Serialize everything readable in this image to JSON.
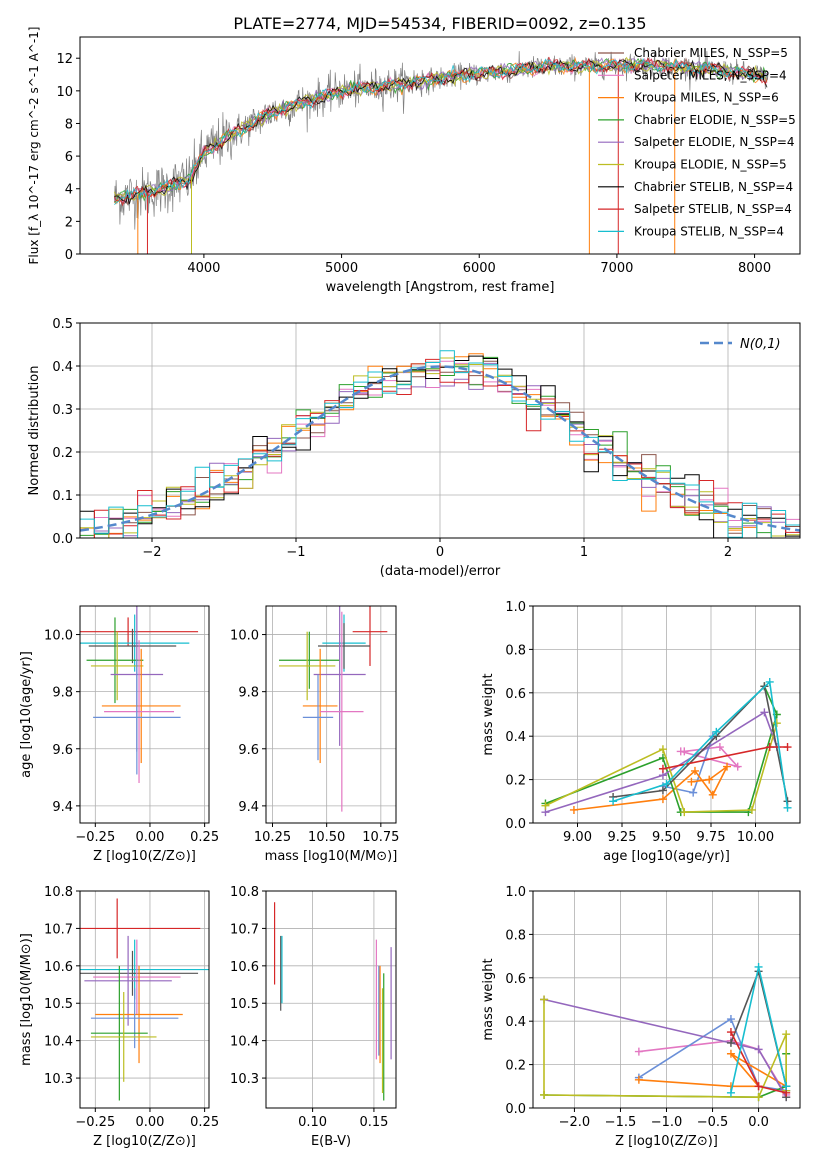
{
  "figure_title": "PLATE=2774, MJD=54534, FIBERID=0092, z=0.135",
  "colors": {
    "data": "#808080",
    "models": [
      "#8c564b",
      "#e377c2",
      "#ff7f0e",
      "#2ca02c",
      "#9467bd",
      "#bcbd22",
      "#000000",
      "#d62728",
      "#17becf"
    ],
    "palette": [
      "#e377c2",
      "#1f77b4",
      "#ff7f0e",
      "#2ca02c",
      "#9467bd",
      "#bcbd22",
      "#555555",
      "#d62728",
      "#17becf",
      "#6a8fd8"
    ],
    "normal_curve": "#5588cc",
    "grid": "#b0b0b0"
  },
  "legend_models": [
    "Chabrier MILES, N_SSP=5",
    "Salpeter MILES, N_SSP=4",
    "Kroupa MILES, N_SSP=6",
    "Chabrier ELODIE, N_SSP=5",
    "Salpeter ELODIE, N_SSP=4",
    "Kroupa ELODIE, N_SSP=5",
    "Chabrier STELIB, N_SSP=4",
    "Salpeter STELIB, N_SSP=4",
    "Kroupa STELIB, N_SSP=4"
  ],
  "chart_data": [
    {
      "id": "spectrum",
      "type": "line",
      "title": "PLATE=2774, MJD=54534, FIBERID=0092, z=0.135",
      "xlabel": "wavelength [Angstrom, rest frame]",
      "ylabel": "Flux [f_λ 10^-17 erg cm^-2 s^-1 A^-1]",
      "xlim": [
        3100,
        8330
      ],
      "ylim": [
        0,
        13.3
      ],
      "xticks": [
        4000,
        5000,
        6000,
        7000,
        8000
      ],
      "yticks": [
        0,
        2,
        4,
        6,
        8,
        10,
        12
      ],
      "grid": false,
      "legend_placement": "top-right",
      "continuum": {
        "x": [
          3350,
          3500,
          3700,
          3900,
          4000,
          4200,
          4500,
          4800,
          5000,
          5300,
          5600,
          5900,
          6200,
          6500,
          6800,
          7100,
          7400,
          7700,
          8000,
          8100
        ],
        "y": [
          3.4,
          3.6,
          4.0,
          4.6,
          6.2,
          7.3,
          8.7,
          9.5,
          10.0,
          10.3,
          10.6,
          11.0,
          11.2,
          11.5,
          11.5,
          11.6,
          11.5,
          11.3,
          11.0,
          10.8
        ]
      },
      "series": [
        {
          "name": "data"
        },
        {
          "name": "Chabrier MILES, N_SSP=5"
        },
        {
          "name": "Salpeter MILES, N_SSP=4"
        },
        {
          "name": "Kroupa MILES, N_SSP=6"
        },
        {
          "name": "Chabrier ELODIE, N_SSP=5"
        },
        {
          "name": "Salpeter ELODIE, N_SSP=4"
        },
        {
          "name": "Kroupa ELODIE, N_SSP=5"
        },
        {
          "name": "Chabrier STELIB, N_SSP=4"
        },
        {
          "name": "Salpeter STELIB, N_SSP=4"
        },
        {
          "name": "Kroupa STELIB, N_SSP=4"
        }
      ]
    },
    {
      "id": "residuals",
      "type": "area",
      "xlabel": "(data-model)/error",
      "ylabel": "Normed distribution",
      "xlim": [
        -2.5,
        2.5
      ],
      "ylim": [
        0,
        0.5
      ],
      "xticks": [
        -2,
        -1,
        0,
        1,
        2
      ],
      "yticks": [
        0.0,
        0.1,
        0.2,
        0.3,
        0.4,
        0.5
      ],
      "grid": true,
      "legend": "N(0,1)",
      "legend_placement": "top-right",
      "bin_width": 0.1,
      "bin_start": -2.5
    },
    {
      "id": "age_vs_Z",
      "type": "scatter",
      "xlabel": "Z [log10(Z/Z⊙)]",
      "ylabel": "age [log10(age/yr)]",
      "xlim": [
        -0.32,
        0.27
      ],
      "ylim": [
        9.34,
        10.1
      ],
      "xticks": [
        -0.25,
        0.0,
        0.25
      ],
      "yticks": [
        9.4,
        9.6,
        9.8,
        10.0
      ],
      "grid": true,
      "points": [
        {
          "x": -0.1,
          "y": 10.01,
          "xerr": 0.32,
          "yerr": 0.05,
          "c": 7
        },
        {
          "x": -0.07,
          "y": 9.97,
          "xerr": 0.25,
          "yerr": 0.1,
          "c": 8
        },
        {
          "x": -0.08,
          "y": 9.96,
          "xerr": 0.2,
          "yerr": 0.06,
          "c": 6
        },
        {
          "x": -0.16,
          "y": 9.91,
          "xerr": 0.13,
          "yerr": 0.15,
          "c": 3
        },
        {
          "x": -0.15,
          "y": 9.89,
          "xerr": 0.12,
          "yerr": 0.12,
          "c": 5
        },
        {
          "x": -0.06,
          "y": 9.86,
          "xerr": 0.12,
          "yerr": 0.27,
          "c": 4
        },
        {
          "x": -0.04,
          "y": 9.75,
          "xerr": 0.18,
          "yerr": 0.2,
          "c": 2
        },
        {
          "x": -0.05,
          "y": 9.73,
          "xerr": 0.16,
          "yerr": 0.25,
          "c": 0
        },
        {
          "x": -0.06,
          "y": 9.71,
          "xerr": 0.2,
          "yerr": 0.2,
          "c": 9
        }
      ]
    },
    {
      "id": "age_vs_mass",
      "type": "scatter",
      "xlabel": "mass [log10(M/M⊙)]",
      "ylabel": "",
      "xlim": [
        10.22,
        10.82
      ],
      "ylim": [
        9.34,
        10.1
      ],
      "xticks": [
        10.25,
        10.5,
        10.75
      ],
      "yticks": [
        9.4,
        9.6,
        9.8,
        10.0
      ],
      "grid": true,
      "points": [
        {
          "x": 10.7,
          "y": 10.01,
          "xerr": 0.08,
          "yerr": 0.12,
          "c": 7
        },
        {
          "x": 10.58,
          "y": 9.97,
          "xerr": 0.1,
          "yerr": 0.1,
          "c": 8
        },
        {
          "x": 10.58,
          "y": 9.96,
          "xerr": 0.12,
          "yerr": 0.08,
          "c": 6
        },
        {
          "x": 10.42,
          "y": 9.91,
          "xerr": 0.14,
          "yerr": 0.1,
          "c": 3
        },
        {
          "x": 10.41,
          "y": 9.89,
          "xerr": 0.13,
          "yerr": 0.12,
          "c": 5
        },
        {
          "x": 10.56,
          "y": 9.86,
          "xerr": 0.12,
          "yerr": 0.25,
          "c": 4
        },
        {
          "x": 10.47,
          "y": 9.75,
          "xerr": 0.08,
          "yerr": 0.2,
          "c": 2
        },
        {
          "x": 10.57,
          "y": 9.73,
          "xerr": 0.1,
          "yerr": 0.35,
          "c": 0
        },
        {
          "x": 10.46,
          "y": 9.71,
          "xerr": 0.07,
          "yerr": 0.15,
          "c": 9
        }
      ]
    },
    {
      "id": "weight_vs_age",
      "type": "line",
      "xlabel": "age [log10(age/yr)]",
      "ylabel": "mass weight",
      "xlim": [
        8.75,
        10.25
      ],
      "ylim": [
        0,
        1
      ],
      "xticks": [
        9.0,
        9.25,
        9.5,
        9.75,
        10.0
      ],
      "yticks": [
        0.0,
        0.2,
        0.4,
        0.6,
        0.8,
        1.0
      ],
      "grid": true,
      "series": [
        {
          "c": 0,
          "x": [
            9.6,
            9.8,
            9.9,
            9.58
          ],
          "y": [
            0.33,
            0.35,
            0.26,
            0.33
          ]
        },
        {
          "c": 9,
          "x": [
            9.48,
            9.65,
            9.76
          ],
          "y": [
            0.17,
            0.14,
            0.4
          ]
        },
        {
          "c": 2,
          "x": [
            8.98,
            9.48,
            9.66,
            9.76,
            9.84,
            9.74,
            9.64
          ],
          "y": [
            0.06,
            0.11,
            0.24,
            0.13,
            0.26,
            0.2,
            0.19
          ]
        },
        {
          "c": 3,
          "x": [
            8.82,
            9.48,
            9.58,
            9.96,
            10.12,
            10.05
          ],
          "y": [
            0.09,
            0.3,
            0.05,
            0.05,
            0.5,
            0.63
          ]
        },
        {
          "c": 4,
          "x": [
            8.82,
            9.48,
            10.05,
            10.12
          ],
          "y": [
            0.05,
            0.22,
            0.51,
            0.35
          ]
        },
        {
          "c": 5,
          "x": [
            8.82,
            9.48,
            9.6,
            9.98,
            10.12
          ],
          "y": [
            0.08,
            0.34,
            0.05,
            0.06,
            0.46
          ]
        },
        {
          "c": 6,
          "x": [
            9.2,
            9.48,
            9.78,
            10.05,
            10.18
          ],
          "y": [
            0.12,
            0.15,
            0.4,
            0.63,
            0.1
          ]
        },
        {
          "c": 7,
          "x": [
            9.48,
            10.08,
            10.18
          ],
          "y": [
            0.25,
            0.35,
            0.35
          ]
        },
        {
          "c": 8,
          "x": [
            9.2,
            9.5,
            9.78,
            10.08,
            10.18
          ],
          "y": [
            0.1,
            0.18,
            0.42,
            0.65,
            0.07
          ]
        }
      ]
    },
    {
      "id": "mass_vs_Z",
      "type": "scatter",
      "xlabel": "Z [log10(Z/Z⊙)]",
      "ylabel": "mass [log10(M/M⊙)]",
      "xlim": [
        -0.32,
        0.27
      ],
      "ylim": [
        10.22,
        10.8
      ],
      "xticks": [
        -0.25,
        0.0,
        0.25
      ],
      "yticks": [
        10.3,
        10.4,
        10.5,
        10.6,
        10.7,
        10.8
      ],
      "grid": true,
      "points": [
        {
          "x": -0.15,
          "y": 10.7,
          "xerr": 0.38,
          "yerr": 0.08,
          "c": 7
        },
        {
          "x": -0.07,
          "y": 10.59,
          "xerr": 0.35,
          "yerr": 0.08,
          "c": 8
        },
        {
          "x": -0.08,
          "y": 10.58,
          "xerr": 0.3,
          "yerr": 0.06,
          "c": 6
        },
        {
          "x": -0.06,
          "y": 10.57,
          "xerr": 0.2,
          "yerr": 0.1,
          "c": 0
        },
        {
          "x": -0.1,
          "y": 10.56,
          "xerr": 0.2,
          "yerr": 0.12,
          "c": 4
        },
        {
          "x": -0.05,
          "y": 10.47,
          "xerr": 0.2,
          "yerr": 0.13,
          "c": 2
        },
        {
          "x": -0.07,
          "y": 10.46,
          "xerr": 0.2,
          "yerr": 0.08,
          "c": 9
        },
        {
          "x": -0.14,
          "y": 10.42,
          "xerr": 0.13,
          "yerr": 0.18,
          "c": 3
        },
        {
          "x": -0.12,
          "y": 10.41,
          "xerr": 0.15,
          "yerr": 0.12,
          "c": 5
        }
      ]
    },
    {
      "id": "mass_vs_ebv",
      "type": "scatter",
      "xlabel": "E(B-V)",
      "ylabel": "",
      "xlim": [
        0.062,
        0.168
      ],
      "ylim": [
        10.22,
        10.8
      ],
      "xticks": [
        0.1,
        0.15
      ],
      "yticks": [
        10.3,
        10.4,
        10.5,
        10.6,
        10.7,
        10.8
      ],
      "grid": true,
      "points": [
        {
          "x": 0.069,
          "y": 10.66,
          "xerr": 0,
          "yerr": 0.11,
          "c": 7
        },
        {
          "x": 0.074,
          "y": 10.58,
          "xerr": 0,
          "yerr": 0.1,
          "c": 6
        },
        {
          "x": 0.075,
          "y": 10.59,
          "xerr": 0,
          "yerr": 0.09,
          "c": 8
        },
        {
          "x": 0.152,
          "y": 10.51,
          "xerr": 0,
          "yerr": 0.16,
          "c": 0
        },
        {
          "x": 0.155,
          "y": 10.47,
          "xerr": 0,
          "yerr": 0.13,
          "c": 2
        },
        {
          "x": 0.158,
          "y": 10.41,
          "xerr": 0,
          "yerr": 0.17,
          "c": 3
        },
        {
          "x": 0.157,
          "y": 10.4,
          "xerr": 0,
          "yerr": 0.14,
          "c": 5
        },
        {
          "x": 0.164,
          "y": 10.5,
          "xerr": 0,
          "yerr": 0.15,
          "c": 4
        },
        {
          "x": 0.154,
          "y": 10.48,
          "xerr": 0,
          "yerr": 0.12,
          "c": 9
        }
      ]
    },
    {
      "id": "weight_vs_Z",
      "type": "line",
      "xlabel": "Z [log10(Z/Z⊙)]",
      "ylabel": "mass weight",
      "xlim": [
        -2.45,
        0.45
      ],
      "ylim": [
        0,
        1
      ],
      "xticks": [
        -2.0,
        -1.5,
        -1.0,
        -0.5,
        0.0
      ],
      "yticks": [
        0.0,
        0.2,
        0.4,
        0.6,
        0.8,
        1.0
      ],
      "grid": true,
      "series": [
        {
          "c": 0,
          "x": [
            -1.3,
            -0.3,
            0.0,
            0.3
          ],
          "y": [
            0.26,
            0.31,
            0.27,
            0.06
          ]
        },
        {
          "c": 9,
          "x": [
            -1.3,
            -0.3,
            0.0,
            0.3
          ],
          "y": [
            0.14,
            0.41,
            0.1,
            0.08
          ]
        },
        {
          "c": 2,
          "x": [
            -1.3,
            -0.3,
            0.0,
            -0.3,
            0.3
          ],
          "y": [
            0.13,
            0.1,
            0.1,
            0.25,
            0.1
          ]
        },
        {
          "c": 3,
          "x": [
            -2.33,
            0.0,
            0.3,
            0.3
          ],
          "y": [
            0.06,
            0.05,
            0.1,
            0.25
          ]
        },
        {
          "c": 4,
          "x": [
            -2.33,
            0.0,
            0.3
          ],
          "y": [
            0.5,
            0.27,
            0.05
          ]
        },
        {
          "c": 5,
          "x": [
            -2.33,
            -2.33,
            0.0,
            0.3,
            0.3
          ],
          "y": [
            0.5,
            0.06,
            0.05,
            0.34,
            0.08
          ]
        },
        {
          "c": 6,
          "x": [
            -0.3,
            0.0,
            0.3,
            0.3
          ],
          "y": [
            0.3,
            0.63,
            0.1,
            0.05
          ]
        },
        {
          "c": 7,
          "x": [
            -0.3,
            0.0,
            0.3
          ],
          "y": [
            0.35,
            0.1,
            0.07
          ]
        },
        {
          "c": 8,
          "x": [
            -0.3,
            0.0,
            0.3
          ],
          "y": [
            0.07,
            0.65,
            0.1
          ]
        }
      ]
    }
  ]
}
